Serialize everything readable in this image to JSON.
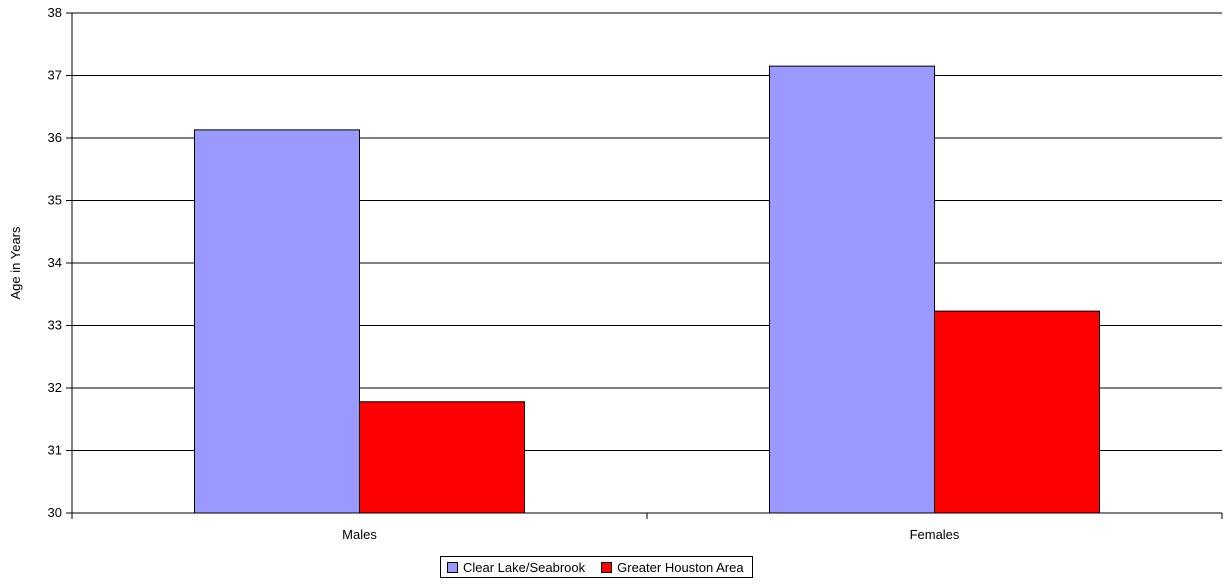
{
  "chart_data": {
    "type": "bar",
    "title": "",
    "xlabel": "",
    "ylabel": "Age in Years",
    "categories": [
      "Males",
      "Females"
    ],
    "series": [
      {
        "name": "Clear Lake/Seabrook",
        "color": "#9999ff",
        "values": [
          36.13,
          37.15
        ]
      },
      {
        "name": "Greater Houston Area",
        "color": "#ff0000",
        "values": [
          31.78,
          33.23
        ]
      }
    ],
    "ylim": [
      30,
      38
    ],
    "yticks": [
      "30",
      "31",
      "32",
      "33",
      "34",
      "35",
      "36",
      "37",
      "38"
    ],
    "grid": true,
    "legend": "bottom"
  }
}
